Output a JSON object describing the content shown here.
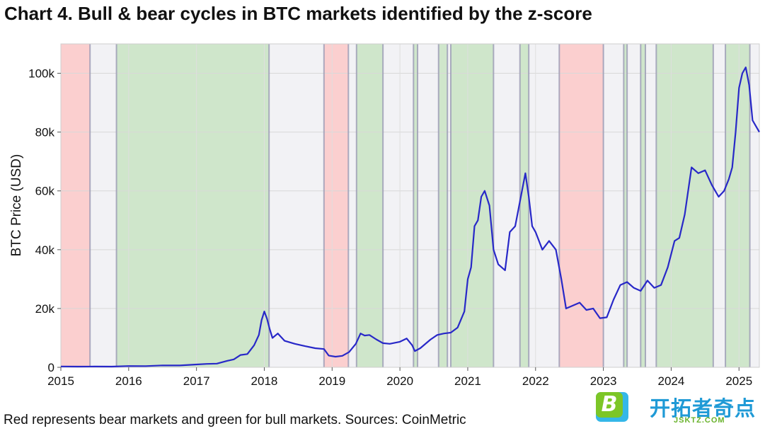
{
  "title": "Chart 4. Bull & bear cycles in BTC markets identified by the z-score",
  "caption": "Red represents bear markets and green for bull markets. Sources: CoinMetric",
  "logo": {
    "text": "开拓者奇点",
    "url": "JSKTZ.COM",
    "badge": "B"
  },
  "colors": {
    "bear": "#fbcfcf",
    "bull": "#cfe6cb",
    "neutral": "#f2f2f5",
    "line": "#2828c8",
    "boundary": "#9a9ab4"
  },
  "chart_data": {
    "type": "line",
    "title": "Chart 4. Bull & bear cycles in BTC markets identified by the z-score",
    "xlabel": "",
    "ylabel": "BTC Price (USD)",
    "xlim": [
      2015.0,
      2025.3
    ],
    "ylim": [
      0,
      110000
    ],
    "xticks": [
      2015,
      2016,
      2017,
      2018,
      2019,
      2020,
      2021,
      2022,
      2023,
      2024,
      2025
    ],
    "xtick_labels": [
      "2015",
      "2016",
      "2017",
      "2018",
      "2019",
      "2020",
      "2021",
      "2022",
      "2023",
      "2024",
      "2025"
    ],
    "yticks": [
      0,
      20000,
      40000,
      60000,
      80000,
      100000
    ],
    "ytick_labels": [
      "0",
      "20k",
      "40k",
      "60k",
      "80k",
      "100k"
    ],
    "grid": true,
    "regimes": [
      {
        "start": 2015.0,
        "end": 2015.43,
        "state": "bear"
      },
      {
        "start": 2015.43,
        "end": 2015.82,
        "state": "neutral"
      },
      {
        "start": 2015.82,
        "end": 2018.07,
        "state": "bull"
      },
      {
        "start": 2018.07,
        "end": 2018.88,
        "state": "neutral"
      },
      {
        "start": 2018.88,
        "end": 2019.24,
        "state": "bear"
      },
      {
        "start": 2019.24,
        "end": 2019.36,
        "state": "neutral"
      },
      {
        "start": 2019.36,
        "end": 2019.75,
        "state": "bull"
      },
      {
        "start": 2019.75,
        "end": 2020.2,
        "state": "neutral"
      },
      {
        "start": 2020.2,
        "end": 2020.26,
        "state": "bull"
      },
      {
        "start": 2020.26,
        "end": 2020.57,
        "state": "neutral"
      },
      {
        "start": 2020.57,
        "end": 2020.7,
        "state": "bull"
      },
      {
        "start": 2020.7,
        "end": 2020.75,
        "state": "neutral"
      },
      {
        "start": 2020.75,
        "end": 2021.38,
        "state": "bull"
      },
      {
        "start": 2021.38,
        "end": 2021.77,
        "state": "neutral"
      },
      {
        "start": 2021.77,
        "end": 2021.9,
        "state": "bull"
      },
      {
        "start": 2021.9,
        "end": 2022.35,
        "state": "neutral"
      },
      {
        "start": 2022.35,
        "end": 2023.0,
        "state": "bear"
      },
      {
        "start": 2023.0,
        "end": 2023.3,
        "state": "neutral"
      },
      {
        "start": 2023.3,
        "end": 2023.35,
        "state": "bull"
      },
      {
        "start": 2023.35,
        "end": 2023.55,
        "state": "neutral"
      },
      {
        "start": 2023.55,
        "end": 2023.62,
        "state": "bull"
      },
      {
        "start": 2023.62,
        "end": 2023.78,
        "state": "neutral"
      },
      {
        "start": 2023.78,
        "end": 2024.62,
        "state": "bull"
      },
      {
        "start": 2024.62,
        "end": 2024.8,
        "state": "neutral"
      },
      {
        "start": 2024.8,
        "end": 2025.16,
        "state": "bull"
      },
      {
        "start": 2025.16,
        "end": 2025.3,
        "state": "neutral"
      }
    ],
    "series": [
      {
        "x": [
          2015.0,
          2015.25,
          2015.5,
          2015.75,
          2016.0,
          2016.25,
          2016.5,
          2016.75,
          2017.0,
          2017.15,
          2017.3,
          2017.45,
          2017.55,
          2017.65,
          2017.75,
          2017.85,
          2017.92,
          2017.96,
          2018.0,
          2018.04,
          2018.08,
          2018.12,
          2018.2,
          2018.3,
          2018.45,
          2018.6,
          2018.75,
          2018.88,
          2018.95,
          2019.05,
          2019.15,
          2019.25,
          2019.35,
          2019.42,
          2019.48,
          2019.55,
          2019.65,
          2019.75,
          2019.85,
          2020.0,
          2020.1,
          2020.18,
          2020.22,
          2020.3,
          2020.45,
          2020.55,
          2020.65,
          2020.75,
          2020.85,
          2020.95,
          2021.0,
          2021.05,
          2021.1,
          2021.15,
          2021.2,
          2021.25,
          2021.32,
          2021.38,
          2021.45,
          2021.55,
          2021.62,
          2021.7,
          2021.75,
          2021.8,
          2021.85,
          2021.9,
          2021.95,
          2022.0,
          2022.1,
          2022.2,
          2022.3,
          2022.38,
          2022.45,
          2022.55,
          2022.65,
          2022.75,
          2022.85,
          2022.95,
          2023.05,
          2023.15,
          2023.25,
          2023.35,
          2023.45,
          2023.55,
          2023.65,
          2023.75,
          2023.85,
          2023.95,
          2024.05,
          2024.12,
          2024.2,
          2024.3,
          2024.4,
          2024.5,
          2024.6,
          2024.7,
          2024.78,
          2024.85,
          2024.9,
          2024.95,
          2025.0,
          2025.05,
          2025.1,
          2025.15,
          2025.2,
          2025.25,
          2025.3
        ],
        "y": [
          300,
          240,
          260,
          250,
          430,
          420,
          650,
          620,
          960,
          1150,
          1250,
          2200,
          2700,
          4200,
          4500,
          7500,
          11000,
          16000,
          19000,
          16500,
          13000,
          10000,
          11500,
          9000,
          8000,
          7200,
          6500,
          6200,
          4000,
          3600,
          3900,
          5200,
          8000,
          11500,
          10800,
          11000,
          9500,
          8200,
          8000,
          8700,
          9800,
          7500,
          5500,
          6500,
          9400,
          11000,
          11500,
          11800,
          13500,
          19000,
          30000,
          34000,
          48000,
          50000,
          58000,
          60000,
          55000,
          40000,
          35000,
          33000,
          46000,
          48000,
          54000,
          60000,
          66000,
          58000,
          48000,
          46000,
          40000,
          43000,
          40000,
          30000,
          20000,
          21000,
          22000,
          19500,
          20000,
          16700,
          17000,
          23000,
          28000,
          29000,
          27000,
          26000,
          29500,
          27000,
          28000,
          34000,
          43000,
          44000,
          52000,
          68000,
          66000,
          67000,
          62000,
          58000,
          60000,
          64000,
          68000,
          80000,
          95000,
          100000,
          102000,
          96000,
          84000,
          82000,
          80000
        ]
      }
    ]
  }
}
